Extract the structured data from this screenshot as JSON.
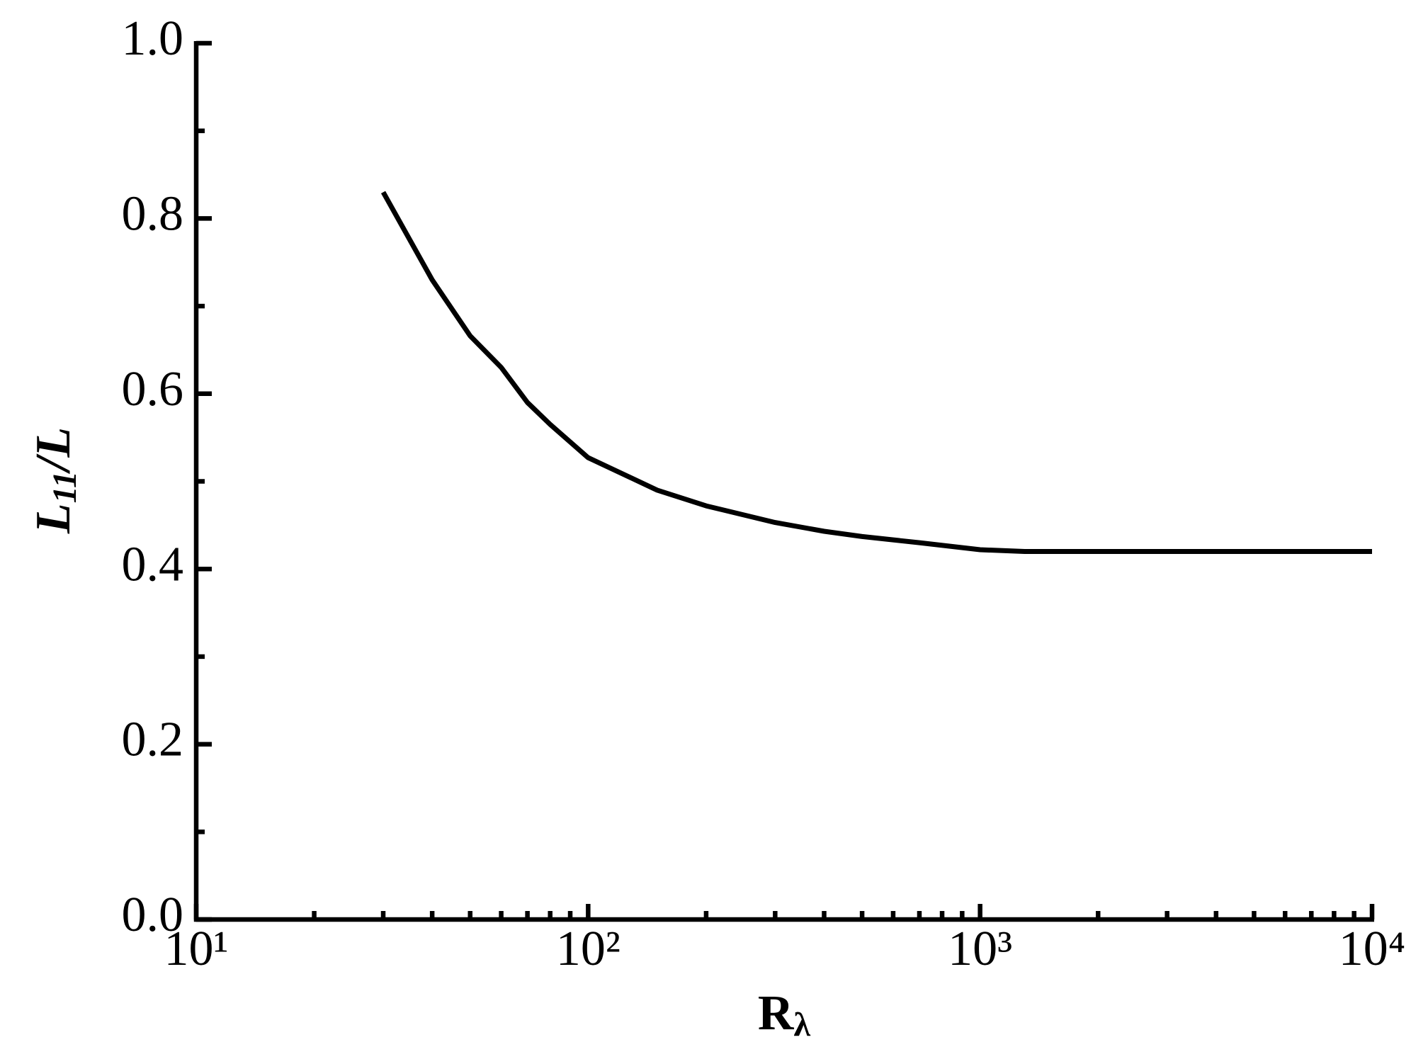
{
  "chart_data": {
    "type": "line",
    "x_label": {
      "main": "R",
      "sub": "λ"
    },
    "y_label": {
      "main": "L",
      "sub": "11",
      "rest": "/L"
    },
    "x": [
      30,
      40,
      50,
      60,
      70,
      80,
      100,
      150,
      200,
      300,
      400,
      500,
      700,
      1000,
      1300,
      2000,
      5000,
      10000
    ],
    "series": [
      {
        "color": "#000000",
        "values": [
          0.83,
          0.73,
          0.666,
          0.63,
          0.59,
          0.565,
          0.527,
          0.49,
          0.472,
          0.453,
          0.443,
          0.437,
          0.43,
          0.422,
          0.42,
          0.42,
          0.42,
          0.42
        ]
      }
    ],
    "xlog": true,
    "xlim": [
      10,
      10000
    ],
    "xticks": [
      {
        "value": 10,
        "label": "10¹"
      },
      {
        "value": 100,
        "label": "10²"
      },
      {
        "value": 1000,
        "label": "10³"
      },
      {
        "value": 10000,
        "label": "10⁴"
      }
    ],
    "xminorticks": [
      20,
      30,
      40,
      50,
      60,
      70,
      80,
      90,
      200,
      300,
      400,
      500,
      600,
      700,
      800,
      900,
      2000,
      3000,
      4000,
      5000,
      6000,
      7000,
      8000,
      9000
    ],
    "ylim": [
      0,
      1
    ],
    "yticks": [
      {
        "value": 0,
        "label": "0.0"
      },
      0.2,
      0.4,
      0.6,
      0.8,
      {
        "value": 1,
        "label": "1.0"
      }
    ],
    "yminorticks": [
      0.1,
      0.3,
      0.5,
      0.7,
      0.9
    ]
  }
}
